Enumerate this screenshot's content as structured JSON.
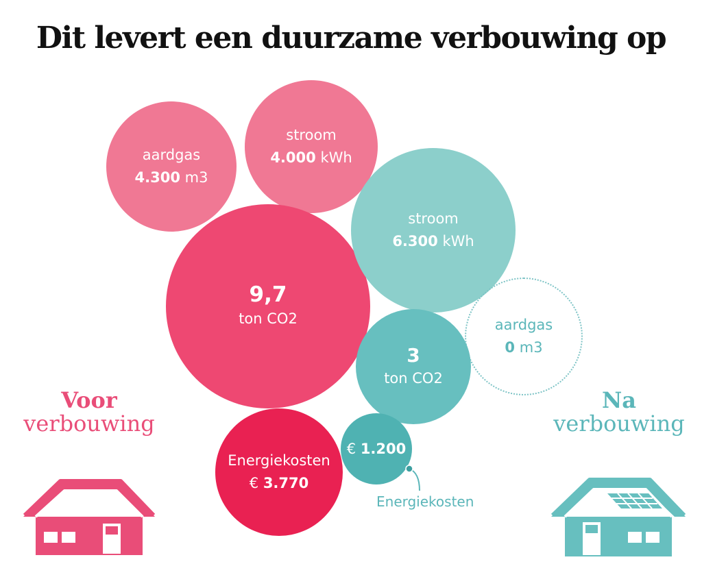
{
  "title": "Dit levert een duurzame verbouwing op",
  "voor": {
    "label_bold": "Voor",
    "label_rest": "verbouwing",
    "color": "#e94d78",
    "aardgas": {
      "label": "aardgas",
      "value": "4.300",
      "unit": "m3"
    },
    "stroom": {
      "label": "stroom",
      "value": "4.000",
      "unit": "kWh"
    },
    "co2": {
      "value": "9,7",
      "unit": "ton CO2"
    },
    "kosten": {
      "label": "Energiekosten",
      "currency": "€",
      "value": "3.770"
    }
  },
  "na": {
    "label_bold": "Na",
    "label_rest": "verbouwing",
    "color": "#5bb6b9",
    "stroom": {
      "label": "stroom",
      "value": "6.300",
      "unit": "kWh"
    },
    "aardgas": {
      "label": "aardgas",
      "value": "0",
      "unit": "m3"
    },
    "co2": {
      "value": "3",
      "unit": "ton CO2"
    },
    "kosten": {
      "label": "Energiekosten",
      "currency": "€",
      "value": "1.200"
    }
  }
}
